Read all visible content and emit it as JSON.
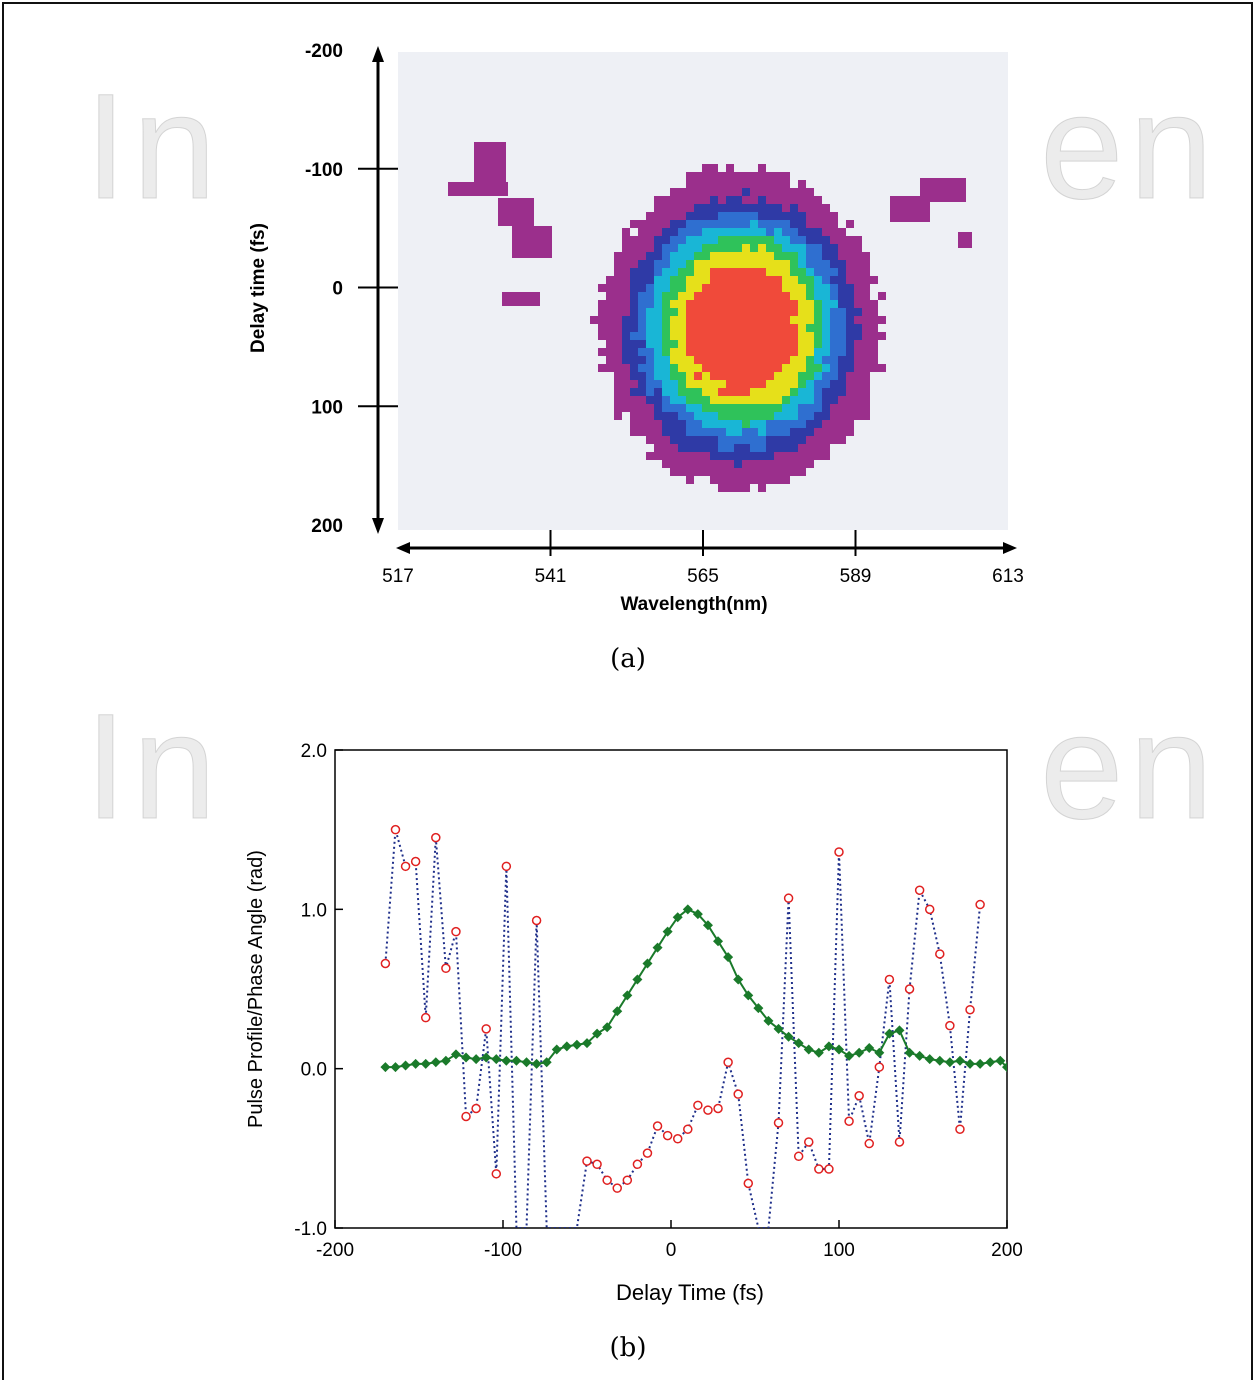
{
  "watermark": {
    "left": "In",
    "right": "en"
  },
  "panel_a": {
    "caption": "(a)",
    "xlabel": "Wavelength(nm)",
    "ylabel": "Delay time (fs)",
    "x_ticks": [
      "517",
      "541",
      "565",
      "589",
      "613"
    ],
    "y_ticks": [
      "-200",
      "-100",
      "0",
      "100",
      "200"
    ]
  },
  "panel_b": {
    "caption": "(b)",
    "xlabel": "Delay Time (fs)",
    "ylabel": "Pulse Profile/Phase Angle (rad)",
    "x_ticks": [
      "-200",
      "-100",
      "0",
      "100",
      "200"
    ],
    "y_ticks": [
      "2.0",
      "1.0",
      "0.0",
      "-1.0"
    ]
  },
  "chart_data": [
    {
      "type": "heatmap",
      "title": "",
      "xlabel": "Wavelength(nm)",
      "ylabel": "Delay time (fs)",
      "xlim": [
        517,
        613
      ],
      "ylim": [
        -200,
        200
      ],
      "x_ticks": [
        517,
        541,
        565,
        589,
        613
      ],
      "y_ticks": [
        -200,
        -100,
        0,
        100,
        200
      ],
      "peak": {
        "wavelength": 571,
        "delay": 35
      },
      "colors": [
        "#9b2f8c",
        "#2f3aa6",
        "#2f6fd0",
        "#19b6d6",
        "#2fc25a",
        "#e6e01a",
        "#f04a3a"
      ]
    },
    {
      "type": "line",
      "title": "",
      "xlabel": "Delay Time (fs)",
      "ylabel": "Pulse Profile/Phase Angle (rad)",
      "xlim": [
        -200,
        200
      ],
      "ylim": [
        -1.0,
        2.0
      ],
      "x_ticks": [
        -200,
        -100,
        0,
        100,
        200
      ],
      "y_ticks": [
        2.0,
        1.0,
        0.0,
        -1.0
      ],
      "series": [
        {
          "color": "#1a7a2a",
          "marker": "diamond-filled",
          "points": [
            [
              -170,
              0.01
            ],
            [
              -164,
              0.01
            ],
            [
              -158,
              0.02
            ],
            [
              -152,
              0.03
            ],
            [
              -146,
              0.03
            ],
            [
              -140,
              0.04
            ],
            [
              -134,
              0.05
            ],
            [
              -128,
              0.09
            ],
            [
              -122,
              0.07
            ],
            [
              -116,
              0.06
            ],
            [
              -110,
              0.07
            ],
            [
              -104,
              0.06
            ],
            [
              -98,
              0.05
            ],
            [
              -92,
              0.05
            ],
            [
              -86,
              0.04
            ],
            [
              -80,
              0.03
            ],
            [
              -74,
              0.04
            ],
            [
              -68,
              0.12
            ],
            [
              -62,
              0.14
            ],
            [
              -56,
              0.15
            ],
            [
              -50,
              0.16
            ],
            [
              -44,
              0.22
            ],
            [
              -38,
              0.26
            ],
            [
              -32,
              0.36
            ],
            [
              -26,
              0.46
            ],
            [
              -20,
              0.56
            ],
            [
              -14,
              0.66
            ],
            [
              -8,
              0.76
            ],
            [
              -2,
              0.86
            ],
            [
              4,
              0.95
            ],
            [
              10,
              1.0
            ],
            [
              16,
              0.97
            ],
            [
              22,
              0.9
            ],
            [
              28,
              0.8
            ],
            [
              34,
              0.7
            ],
            [
              40,
              0.56
            ],
            [
              46,
              0.46
            ],
            [
              52,
              0.38
            ],
            [
              58,
              0.3
            ],
            [
              64,
              0.25
            ],
            [
              70,
              0.2
            ],
            [
              76,
              0.16
            ],
            [
              82,
              0.12
            ],
            [
              88,
              0.1
            ],
            [
              94,
              0.14
            ],
            [
              100,
              0.12
            ],
            [
              106,
              0.08
            ],
            [
              112,
              0.1
            ],
            [
              118,
              0.13
            ],
            [
              124,
              0.1
            ],
            [
              130,
              0.22
            ],
            [
              136,
              0.24
            ],
            [
              142,
              0.1
            ],
            [
              148,
              0.08
            ],
            [
              154,
              0.06
            ],
            [
              160,
              0.05
            ],
            [
              166,
              0.04
            ],
            [
              172,
              0.05
            ],
            [
              178,
              0.03
            ],
            [
              184,
              0.03
            ],
            [
              190,
              0.04
            ],
            [
              196,
              0.05
            ],
            [
              200,
              0.01
            ]
          ]
        },
        {
          "color": "#1f2f8a",
          "marker": "circle-open",
          "marker_color": "#e02020",
          "points": [
            [
              -170,
              0.66
            ],
            [
              -164,
              1.5
            ],
            [
              -158,
              1.27
            ],
            [
              -152,
              1.3
            ],
            [
              -146,
              0.32
            ],
            [
              -140,
              1.45
            ],
            [
              -134,
              0.63
            ],
            [
              -128,
              0.86
            ],
            [
              -122,
              -0.3
            ],
            [
              -116,
              -0.25
            ],
            [
              -110,
              0.25
            ],
            [
              -104,
              -0.66
            ],
            [
              -98,
              1.27
            ],
            [
              -92,
              -1.0
            ],
            [
              -86,
              -1.0
            ],
            [
              -80,
              0.93
            ],
            [
              -74,
              -1.0
            ],
            [
              -68,
              -1.0
            ],
            [
              -62,
              -1.0
            ],
            [
              -56,
              -1.0
            ],
            [
              -50,
              -0.58
            ],
            [
              -44,
              -0.6
            ],
            [
              -38,
              -0.7
            ],
            [
              -32,
              -0.75
            ],
            [
              -26,
              -0.7
            ],
            [
              -20,
              -0.6
            ],
            [
              -14,
              -0.53
            ],
            [
              -8,
              -0.36
            ],
            [
              -2,
              -0.42
            ],
            [
              4,
              -0.44
            ],
            [
              10,
              -0.38
            ],
            [
              16,
              -0.23
            ],
            [
              22,
              -0.26
            ],
            [
              28,
              -0.25
            ],
            [
              34,
              0.04
            ],
            [
              40,
              -0.16
            ],
            [
              46,
              -0.72
            ],
            [
              52,
              -1.0
            ],
            [
              58,
              -1.0
            ],
            [
              64,
              -0.34
            ],
            [
              70,
              1.07
            ],
            [
              76,
              -0.55
            ],
            [
              82,
              -0.46
            ],
            [
              88,
              -0.63
            ],
            [
              94,
              -0.63
            ],
            [
              100,
              1.36
            ],
            [
              106,
              -0.33
            ],
            [
              112,
              -0.17
            ],
            [
              118,
              -0.47
            ],
            [
              124,
              0.01
            ],
            [
              130,
              0.56
            ],
            [
              136,
              -0.46
            ],
            [
              142,
              0.5
            ],
            [
              148,
              1.12
            ],
            [
              154,
              1.0
            ],
            [
              160,
              0.72
            ],
            [
              166,
              0.27
            ],
            [
              172,
              -0.38
            ],
            [
              178,
              0.37
            ],
            [
              184,
              1.03
            ]
          ]
        }
      ]
    }
  ]
}
